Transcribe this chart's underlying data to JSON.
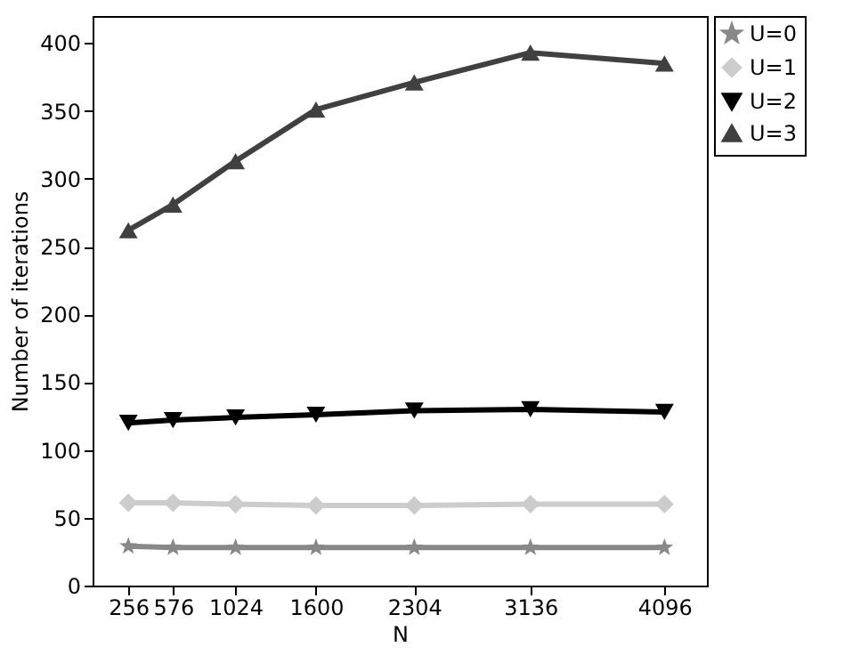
{
  "chart_data": {
    "type": "line",
    "xlabel": "N",
    "ylabel": "Number of iterations",
    "x": [
      256,
      576,
      1024,
      1600,
      2304,
      3136,
      4096
    ],
    "xlim": [
      0,
      4400
    ],
    "xticks": [
      256,
      576,
      1024,
      1600,
      2304,
      3136,
      4096
    ],
    "ylim": [
      0,
      420
    ],
    "yticks": [
      0,
      50,
      100,
      150,
      200,
      250,
      300,
      350,
      400
    ],
    "grid": false,
    "legend": "top right",
    "line_style": "solid",
    "series": [
      {
        "name": "U=0",
        "color": "#888888",
        "marker": "star",
        "values": [
          29,
          28,
          28,
          28,
          28,
          28,
          28
        ]
      },
      {
        "name": "U=1",
        "color": "#cccccc",
        "marker": "diamond",
        "values": [
          61,
          61,
          60,
          59,
          59,
          60,
          60
        ]
      },
      {
        "name": "U=2",
        "color": "#000000",
        "marker": "triangle-down",
        "values": [
          120,
          122,
          124,
          126,
          129,
          130,
          128
        ]
      },
      {
        "name": "U=3",
        "color": "#404040",
        "marker": "triangle-up",
        "values": [
          262,
          281,
          313,
          351,
          371,
          393,
          385
        ]
      }
    ]
  }
}
